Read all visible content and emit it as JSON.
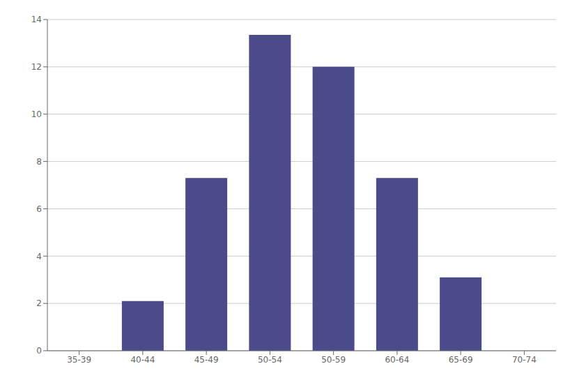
{
  "chart_data": {
    "type": "bar",
    "categories": [
      "35-39",
      "40-44",
      "45-49",
      "50-54",
      "50-59",
      "60-64",
      "65-69",
      "70-74"
    ],
    "values": [
      0,
      2.1,
      7.3,
      13.35,
      12.0,
      7.3,
      3.1,
      0
    ],
    "color": "#4B4B8C",
    "ylim": [
      0,
      14
    ],
    "yticks": [
      0,
      2,
      4,
      6,
      8,
      10,
      12,
      14
    ],
    "grid": true
  }
}
